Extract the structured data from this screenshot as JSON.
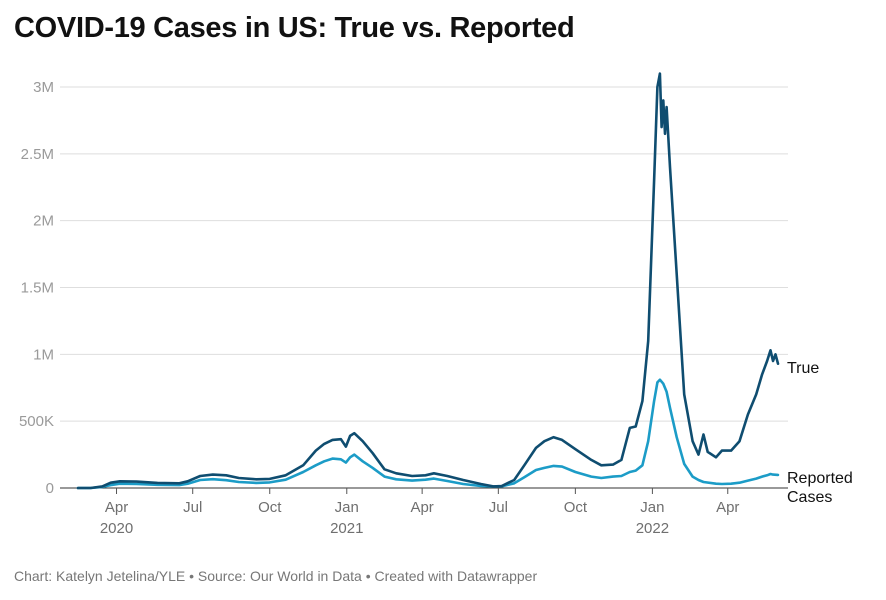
{
  "title": "COVID-19 Cases in US: True vs. Reported",
  "footer": "Chart: Katelyn Jetelina/YLE • Source: Our World in Data • Created with Datawrapper",
  "colors": {
    "true": "#0f4d70",
    "reported": "#1c9cc7",
    "grid": "#dedede"
  },
  "chart_data": {
    "type": "line",
    "title": "COVID-19 Cases in US: True vs. Reported",
    "xlabel": "",
    "ylabel": "",
    "ylim": [
      0,
      3000000
    ],
    "x_range": [
      "2020-02-15",
      "2022-05-31"
    ],
    "y_ticks": [
      {
        "value": 0,
        "label": "0"
      },
      {
        "value": 500000,
        "label": "500K"
      },
      {
        "value": 1000000,
        "label": "1M"
      },
      {
        "value": 1500000,
        "label": "1.5M"
      },
      {
        "value": 2000000,
        "label": "2M"
      },
      {
        "value": 2500000,
        "label": "2.5M"
      },
      {
        "value": 3000000,
        "label": "3M"
      }
    ],
    "x_ticks": [
      {
        "date": "2020-04-01",
        "label": "Apr",
        "year": "2020"
      },
      {
        "date": "2020-07-01",
        "label": "Jul",
        "year": ""
      },
      {
        "date": "2020-10-01",
        "label": "Oct",
        "year": ""
      },
      {
        "date": "2021-01-01",
        "label": "Jan",
        "year": "2021"
      },
      {
        "date": "2021-04-01",
        "label": "Apr",
        "year": ""
      },
      {
        "date": "2021-07-01",
        "label": "Jul",
        "year": ""
      },
      {
        "date": "2021-10-01",
        "label": "Oct",
        "year": ""
      },
      {
        "date": "2022-01-01",
        "label": "Jan",
        "year": "2022"
      },
      {
        "date": "2022-04-01",
        "label": "Apr",
        "year": ""
      }
    ],
    "series": [
      {
        "name": "True",
        "label": "True",
        "points": [
          [
            "2020-02-15",
            0
          ],
          [
            "2020-03-01",
            0
          ],
          [
            "2020-03-15",
            12000
          ],
          [
            "2020-03-25",
            40000
          ],
          [
            "2020-04-05",
            50000
          ],
          [
            "2020-04-25",
            48000
          ],
          [
            "2020-05-20",
            38000
          ],
          [
            "2020-06-15",
            35000
          ],
          [
            "2020-06-25",
            50000
          ],
          [
            "2020-07-10",
            90000
          ],
          [
            "2020-07-25",
            100000
          ],
          [
            "2020-08-10",
            95000
          ],
          [
            "2020-08-25",
            75000
          ],
          [
            "2020-09-15",
            65000
          ],
          [
            "2020-10-01",
            68000
          ],
          [
            "2020-10-20",
            95000
          ],
          [
            "2020-11-10",
            170000
          ],
          [
            "2020-11-25",
            280000
          ],
          [
            "2020-12-05",
            330000
          ],
          [
            "2020-12-15",
            360000
          ],
          [
            "2020-12-25",
            365000
          ],
          [
            "2020-12-31",
            310000
          ],
          [
            "2021-01-05",
            390000
          ],
          [
            "2021-01-10",
            410000
          ],
          [
            "2021-01-20",
            350000
          ],
          [
            "2021-02-01",
            260000
          ],
          [
            "2021-02-15",
            140000
          ],
          [
            "2021-03-01",
            110000
          ],
          [
            "2021-03-20",
            90000
          ],
          [
            "2021-04-05",
            95000
          ],
          [
            "2021-04-15",
            110000
          ],
          [
            "2021-05-01",
            90000
          ],
          [
            "2021-05-20",
            60000
          ],
          [
            "2021-06-10",
            30000
          ],
          [
            "2021-06-25",
            12000
          ],
          [
            "2021-07-05",
            15000
          ],
          [
            "2021-07-20",
            60000
          ],
          [
            "2021-08-01",
            170000
          ],
          [
            "2021-08-15",
            300000
          ],
          [
            "2021-08-25",
            350000
          ],
          [
            "2021-09-05",
            380000
          ],
          [
            "2021-09-15",
            360000
          ],
          [
            "2021-10-01",
            290000
          ],
          [
            "2021-10-20",
            210000
          ],
          [
            "2021-11-01",
            170000
          ],
          [
            "2021-11-15",
            175000
          ],
          [
            "2021-11-25",
            210000
          ],
          [
            "2021-12-05",
            450000
          ],
          [
            "2021-12-12",
            460000
          ],
          [
            "2021-12-20",
            650000
          ],
          [
            "2021-12-27",
            1100000
          ],
          [
            "2022-01-03",
            2300000
          ],
          [
            "2022-01-07",
            3000000
          ],
          [
            "2022-01-10",
            3100000
          ],
          [
            "2022-01-12",
            2700000
          ],
          [
            "2022-01-14",
            2900000
          ],
          [
            "2022-01-16",
            2650000
          ],
          [
            "2022-01-18",
            2850000
          ],
          [
            "2022-01-22",
            2400000
          ],
          [
            "2022-01-30",
            1600000
          ],
          [
            "2022-02-08",
            700000
          ],
          [
            "2022-02-18",
            350000
          ],
          [
            "2022-02-25",
            250000
          ],
          [
            "2022-03-03",
            400000
          ],
          [
            "2022-03-08",
            270000
          ],
          [
            "2022-03-18",
            230000
          ],
          [
            "2022-03-25",
            280000
          ],
          [
            "2022-04-05",
            280000
          ],
          [
            "2022-04-15",
            350000
          ],
          [
            "2022-04-25",
            550000
          ],
          [
            "2022-05-05",
            700000
          ],
          [
            "2022-05-12",
            850000
          ],
          [
            "2022-05-18",
            950000
          ],
          [
            "2022-05-22",
            1030000
          ],
          [
            "2022-05-25",
            950000
          ],
          [
            "2022-05-28",
            1000000
          ],
          [
            "2022-05-31",
            930000
          ]
        ]
      },
      {
        "name": "Reported Cases",
        "label": [
          "Reported",
          "Cases"
        ],
        "points": [
          [
            "2020-02-15",
            0
          ],
          [
            "2020-03-01",
            0
          ],
          [
            "2020-03-15",
            8000
          ],
          [
            "2020-03-25",
            22000
          ],
          [
            "2020-04-05",
            32000
          ],
          [
            "2020-04-25",
            30000
          ],
          [
            "2020-05-20",
            24000
          ],
          [
            "2020-06-15",
            22000
          ],
          [
            "2020-06-25",
            32000
          ],
          [
            "2020-07-10",
            60000
          ],
          [
            "2020-07-25",
            66000
          ],
          [
            "2020-08-10",
            58000
          ],
          [
            "2020-08-25",
            45000
          ],
          [
            "2020-09-15",
            38000
          ],
          [
            "2020-10-01",
            42000
          ],
          [
            "2020-10-20",
            62000
          ],
          [
            "2020-11-10",
            120000
          ],
          [
            "2020-11-25",
            170000
          ],
          [
            "2020-12-05",
            200000
          ],
          [
            "2020-12-15",
            220000
          ],
          [
            "2020-12-25",
            215000
          ],
          [
            "2020-12-31",
            190000
          ],
          [
            "2021-01-05",
            230000
          ],
          [
            "2021-01-10",
            250000
          ],
          [
            "2021-01-20",
            200000
          ],
          [
            "2021-02-01",
            150000
          ],
          [
            "2021-02-15",
            85000
          ],
          [
            "2021-03-01",
            65000
          ],
          [
            "2021-03-20",
            55000
          ],
          [
            "2021-04-05",
            62000
          ],
          [
            "2021-04-15",
            70000
          ],
          [
            "2021-05-01",
            52000
          ],
          [
            "2021-05-20",
            30000
          ],
          [
            "2021-06-10",
            15000
          ],
          [
            "2021-06-25",
            12000
          ],
          [
            "2021-07-05",
            13000
          ],
          [
            "2021-07-20",
            35000
          ],
          [
            "2021-08-01",
            80000
          ],
          [
            "2021-08-15",
            135000
          ],
          [
            "2021-08-25",
            150000
          ],
          [
            "2021-09-05",
            165000
          ],
          [
            "2021-09-15",
            160000
          ],
          [
            "2021-10-01",
            120000
          ],
          [
            "2021-10-20",
            85000
          ],
          [
            "2021-11-01",
            75000
          ],
          [
            "2021-11-15",
            85000
          ],
          [
            "2021-11-25",
            90000
          ],
          [
            "2021-12-05",
            120000
          ],
          [
            "2021-12-12",
            130000
          ],
          [
            "2021-12-20",
            170000
          ],
          [
            "2021-12-27",
            350000
          ],
          [
            "2022-01-03",
            650000
          ],
          [
            "2022-01-07",
            790000
          ],
          [
            "2022-01-10",
            810000
          ],
          [
            "2022-01-14",
            780000
          ],
          [
            "2022-01-18",
            720000
          ],
          [
            "2022-01-22",
            600000
          ],
          [
            "2022-01-30",
            380000
          ],
          [
            "2022-02-08",
            180000
          ],
          [
            "2022-02-18",
            85000
          ],
          [
            "2022-02-25",
            60000
          ],
          [
            "2022-03-03",
            45000
          ],
          [
            "2022-03-18",
            32000
          ],
          [
            "2022-03-25",
            30000
          ],
          [
            "2022-04-05",
            32000
          ],
          [
            "2022-04-15",
            40000
          ],
          [
            "2022-04-25",
            55000
          ],
          [
            "2022-05-05",
            70000
          ],
          [
            "2022-05-12",
            85000
          ],
          [
            "2022-05-18",
            95000
          ],
          [
            "2022-05-22",
            105000
          ],
          [
            "2022-05-25",
            100000
          ],
          [
            "2022-05-31",
            98000
          ]
        ]
      }
    ]
  }
}
